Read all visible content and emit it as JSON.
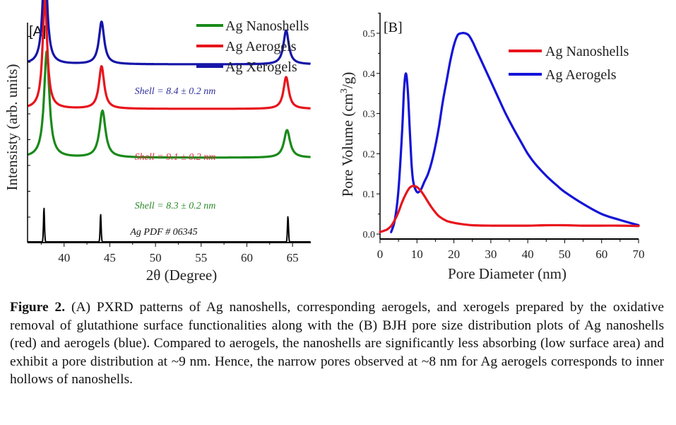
{
  "chart_data": [
    {
      "type": "line",
      "panel_label": "[A]",
      "title": "",
      "xlabel": "2θ (Degree)",
      "ylabel": "Intensisty (arb. units)",
      "xlim": [
        36,
        67
      ],
      "x_ticks": [
        40,
        45,
        50,
        55,
        60,
        65
      ],
      "grid": false,
      "legend_position": "top-right",
      "series": [
        {
          "name": "Ag Nanoshells",
          "color": "#1a8a1a",
          "offset": 0.4,
          "peaks": [
            [
              38.1,
              0.5,
              0.35
            ],
            [
              44.2,
              0.22,
              0.4
            ],
            [
              64.4,
              0.13,
              0.4
            ]
          ],
          "annotation": "Shell = 8.3 ± 0.2 nm"
        },
        {
          "name": "Ag Aerogels",
          "color": "#e8141c",
          "offset": 0.63,
          "peaks": [
            [
              37.9,
              0.52,
              0.3
            ],
            [
              44.1,
              0.2,
              0.35
            ],
            [
              64.3,
              0.15,
              0.35
            ]
          ],
          "annotation": "Shell = 9.1 ± 0.2 nm"
        },
        {
          "name": "Ag Xerogels",
          "color": "#1515a8",
          "offset": 0.84,
          "peaks": [
            [
              37.9,
              0.5,
              0.3
            ],
            [
              44.1,
              0.2,
              0.35
            ],
            [
              64.3,
              0.16,
              0.35
            ]
          ],
          "annotation": "Shell = 8.4 ± 0.2 nm"
        },
        {
          "name": "Ag PDF # 06345",
          "color": "#000000",
          "offset": 0.0,
          "peaks": [
            [
              37.8,
              0.16,
              0.08
            ],
            [
              44.0,
              0.13,
              0.08
            ],
            [
              64.5,
              0.12,
              0.08
            ]
          ],
          "annotation": "Ag PDF # 06345"
        }
      ],
      "annotation_colors": [
        "#2a8a2a",
        "#d8303a",
        "#3030a0",
        "#111111"
      ]
    },
    {
      "type": "line",
      "panel_label": "[B]",
      "title": "",
      "xlabel": "Pore Diameter (nm)",
      "ylabel": "Pore Volume (cm3/g)",
      "xlim": [
        0,
        70
      ],
      "ylim": [
        0,
        0.5
      ],
      "x_ticks": [
        0,
        10,
        20,
        30,
        40,
        50,
        60,
        70
      ],
      "y_ticks": [
        0.0,
        0.1,
        0.2,
        0.3,
        0.4,
        0.5
      ],
      "grid": false,
      "legend_position": "top-right",
      "series": [
        {
          "name": "Ag Nanoshells",
          "color": "#e8141c",
          "x": [
            0,
            1,
            2,
            3,
            4,
            5,
            6,
            7,
            8,
            9,
            10,
            11,
            12,
            13,
            14,
            15,
            16,
            18,
            20,
            22,
            25,
            30,
            35,
            40,
            45,
            50,
            55,
            60,
            65,
            70
          ],
          "y": [
            0.005,
            0.008,
            0.012,
            0.02,
            0.035,
            0.055,
            0.08,
            0.1,
            0.115,
            0.12,
            0.117,
            0.108,
            0.095,
            0.08,
            0.066,
            0.054,
            0.044,
            0.033,
            0.028,
            0.025,
            0.022,
            0.021,
            0.021,
            0.021,
            0.022,
            0.022,
            0.021,
            0.021,
            0.021,
            0.02
          ]
        },
        {
          "name": "Ag Aerogels",
          "color": "#1414d8",
          "x": [
            3,
            4,
            5,
            6,
            6.5,
            7,
            7.5,
            8,
            8.5,
            9,
            10,
            11,
            12,
            13,
            14,
            15,
            16,
            17,
            18,
            19,
            20,
            21,
            22,
            23,
            24,
            25,
            26,
            28,
            30,
            32,
            34,
            36,
            38,
            40,
            42,
            45,
            48,
            50,
            55,
            60,
            65,
            70
          ],
          "y": [
            0.005,
            0.035,
            0.11,
            0.26,
            0.36,
            0.4,
            0.36,
            0.27,
            0.18,
            0.13,
            0.105,
            0.11,
            0.13,
            0.15,
            0.18,
            0.22,
            0.27,
            0.33,
            0.38,
            0.43,
            0.47,
            0.495,
            0.5,
            0.5,
            0.495,
            0.48,
            0.46,
            0.42,
            0.38,
            0.34,
            0.3,
            0.265,
            0.232,
            0.2,
            0.175,
            0.145,
            0.12,
            0.105,
            0.075,
            0.05,
            0.035,
            0.022
          ]
        }
      ]
    }
  ],
  "caption": {
    "label": "Figure 2.",
    "text": " (A) PXRD patterns of Ag nanoshells, corresponding aerogels, and xerogels prepared by the oxidative removal of glutathione surface functionalities along with the (B) BJH pore size distribution plots of Ag nanoshells (red) and aerogels (blue). Compared to aerogels, the nanoshells are significantly less absorbing (low surface area) and exhibit a pore distribution at ~9 nm. Hence, the narrow pores observed at ~8 nm for Ag aerogels corresponds to inner hollows of nanoshells."
  },
  "labels": {
    "ylabel_b_prefix": "Pore Volume (cm",
    "ylabel_b_sup": "3",
    "ylabel_b_suffix": "/g)"
  }
}
